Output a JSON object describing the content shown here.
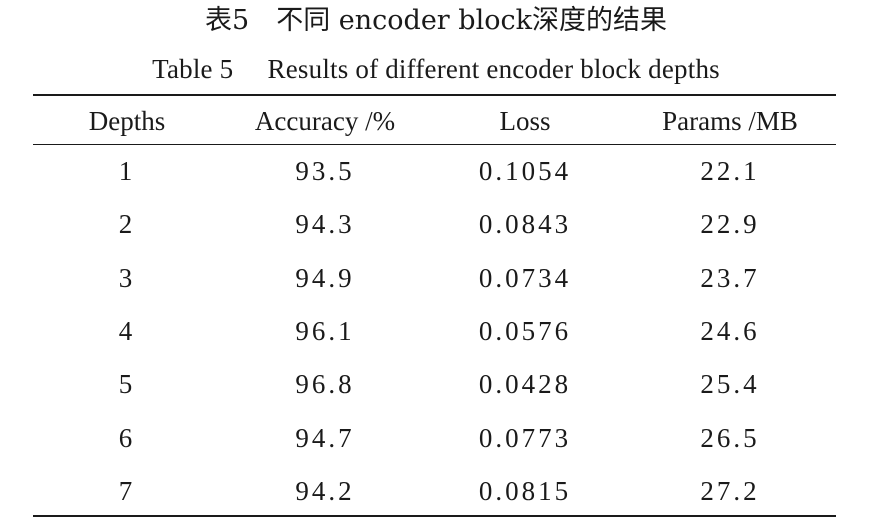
{
  "caption": {
    "cn": "表5　不同 encoder block深度的结果",
    "en": "Table 5　 Results of different encoder block depths"
  },
  "table": {
    "headers": [
      "Depths",
      "Accuracy /%",
      "Loss",
      "Params /MB"
    ],
    "rows": [
      [
        "1",
        "93.5",
        "0.1054",
        "22.1"
      ],
      [
        "2",
        "94.3",
        "0.0843",
        "22.9"
      ],
      [
        "3",
        "94.9",
        "0.0734",
        "23.7"
      ],
      [
        "4",
        "96.1",
        "0.0576",
        "24.6"
      ],
      [
        "5",
        "96.8",
        "0.0428",
        "25.4"
      ],
      [
        "6",
        "94.7",
        "0.0773",
        "26.5"
      ],
      [
        "7",
        "94.2",
        "0.0815",
        "27.2"
      ]
    ]
  }
}
